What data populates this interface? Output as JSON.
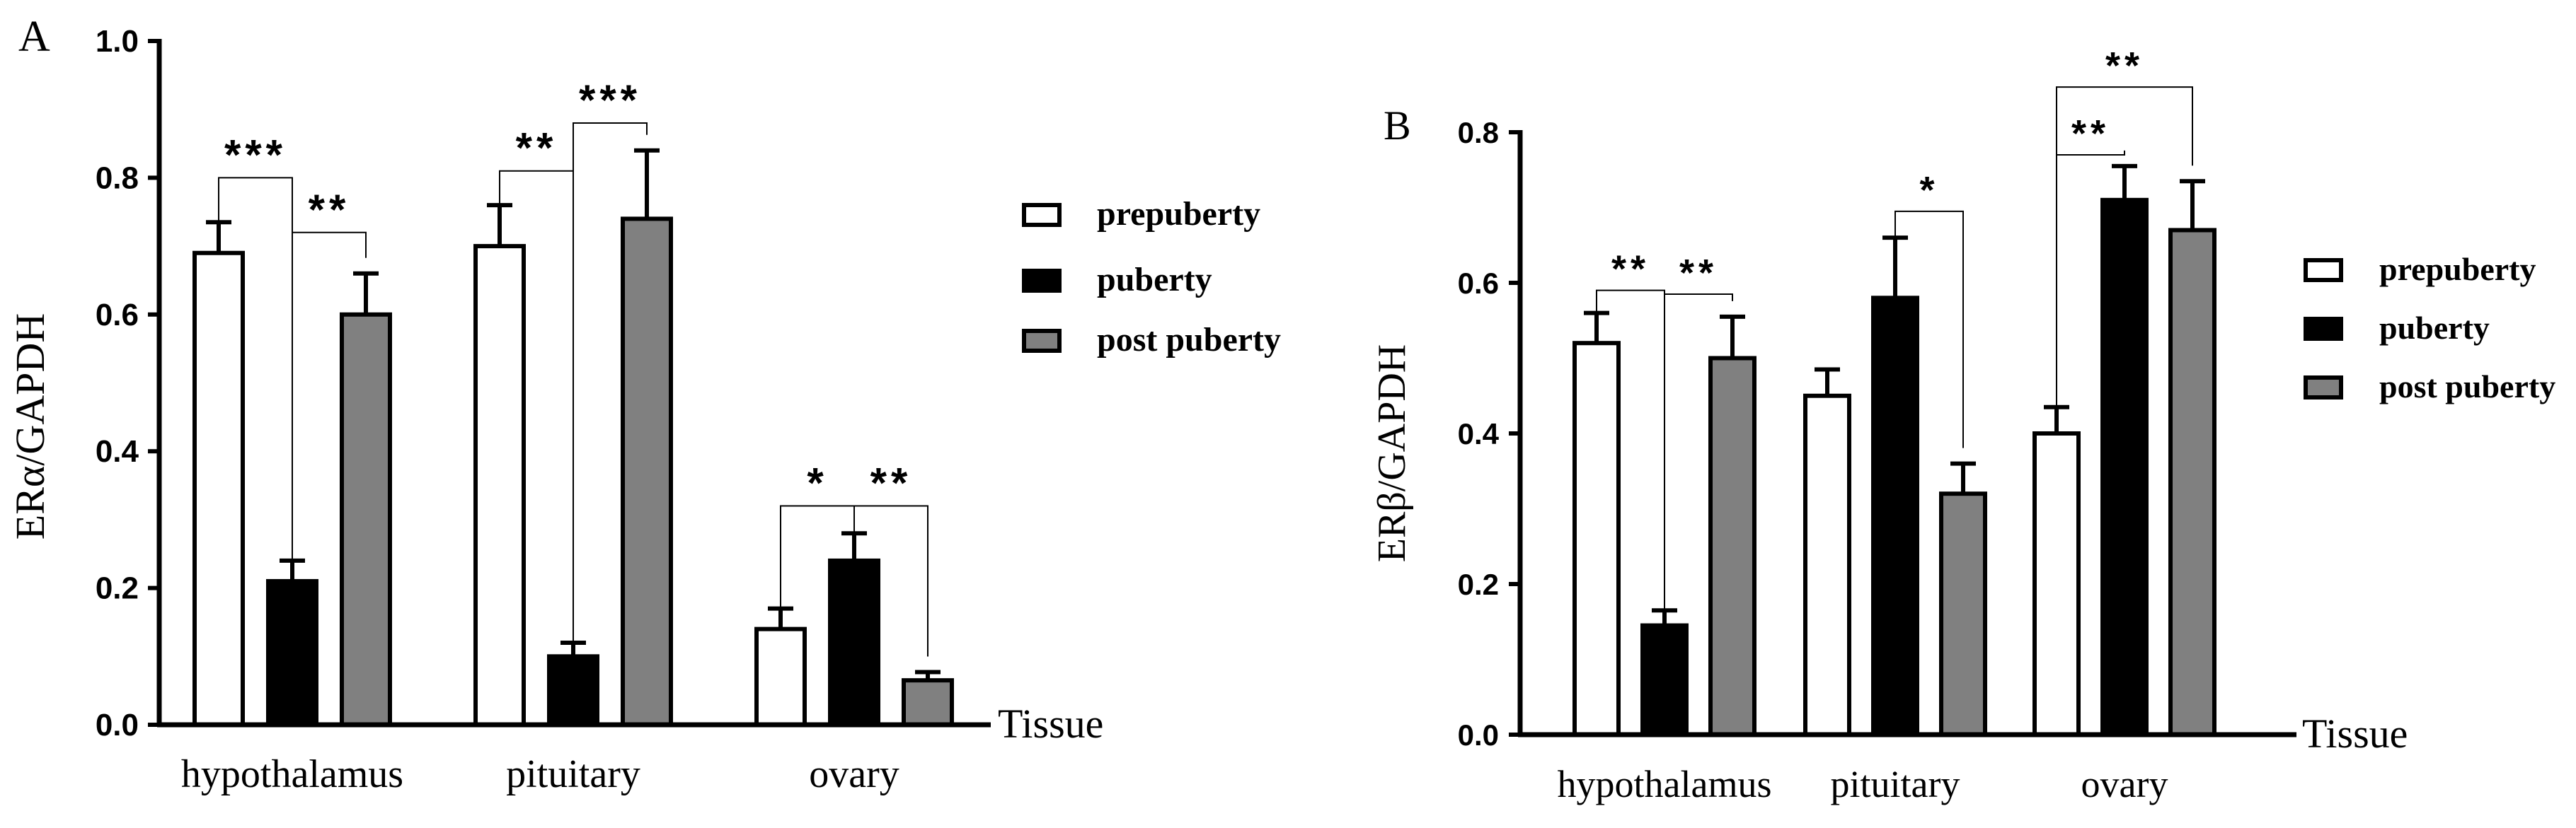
{
  "colors": {
    "prepuberty": "#ffffff",
    "puberty": "#000000",
    "post_puberty": "#808080",
    "axis": "#000000"
  },
  "chart_data": [
    {
      "panel_label": "A",
      "type": "bar",
      "ylabel": "ERα/GAPDH",
      "xlabel": "Tissue",
      "categories": [
        "hypothalamus",
        "pituitary",
        "ovary"
      ],
      "ylim": [
        0,
        1.0
      ],
      "yticks": [
        "0.0",
        "0.2",
        "0.4",
        "0.6",
        "0.8",
        "1.0"
      ],
      "legend": [
        "prepuberty",
        "puberty",
        "post puberty"
      ],
      "legend_position": "right",
      "series": [
        {
          "name": "prepuberty",
          "values": [
            0.69,
            0.7,
            0.14
          ],
          "errors": [
            0.045,
            0.06,
            0.03
          ]
        },
        {
          "name": "puberty",
          "values": [
            0.21,
            0.1,
            0.24
          ],
          "errors": [
            0.03,
            0.02,
            0.04
          ]
        },
        {
          "name": "post puberty",
          "values": [
            0.6,
            0.74,
            0.065
          ],
          "errors": [
            0.06,
            0.1,
            0.012
          ]
        }
      ],
      "significance": [
        {
          "category": 0,
          "from": 0,
          "to": 1,
          "label": "***",
          "level": 0.8
        },
        {
          "category": 0,
          "from": 1,
          "to": 2,
          "label": "**",
          "level": 0.72
        },
        {
          "category": 1,
          "from": 0,
          "to": 1,
          "label": "**",
          "level": 0.81
        },
        {
          "category": 1,
          "from": 1,
          "to": 2,
          "label": "***",
          "level": 0.88
        },
        {
          "category": 2,
          "from": 0,
          "to": 1,
          "label": "*",
          "level": 0.32
        },
        {
          "category": 2,
          "from": 1,
          "to": 2,
          "label": "**",
          "level": 0.32
        }
      ]
    },
    {
      "panel_label": "B",
      "type": "bar",
      "ylabel": "ERβ/GAPDH",
      "xlabel": "Tissue",
      "categories": [
        "hypothalamus",
        "pituitary",
        "ovary"
      ],
      "ylim": [
        0,
        0.8
      ],
      "yticks": [
        "0.0",
        "0.2",
        "0.4",
        "0.6",
        "0.8"
      ],
      "legend": [
        "prepuberty",
        "puberty",
        "post puberty"
      ],
      "legend_position": "right",
      "series": [
        {
          "name": "prepuberty",
          "values": [
            0.52,
            0.45,
            0.4
          ],
          "errors": [
            0.04,
            0.035,
            0.035
          ]
        },
        {
          "name": "puberty",
          "values": [
            0.145,
            0.58,
            0.71
          ],
          "errors": [
            0.02,
            0.08,
            0.045
          ]
        },
        {
          "name": "post puberty",
          "values": [
            0.5,
            0.32,
            0.67
          ],
          "errors": [
            0.055,
            0.04,
            0.065
          ]
        }
      ],
      "significance": [
        {
          "category": 0,
          "from": 0,
          "to": 1,
          "label": "**",
          "level": 0.59
        },
        {
          "category": 0,
          "from": 1,
          "to": 2,
          "label": "**",
          "level": 0.585
        },
        {
          "category": 1,
          "from": 1,
          "to": 2,
          "label": "*",
          "level": 0.695
        },
        {
          "category": 2,
          "from": 0,
          "to": 1,
          "label": "**",
          "level": 0.77
        },
        {
          "category": 2,
          "from": 0,
          "to": 2,
          "label": "**",
          "level": 0.86
        }
      ]
    }
  ]
}
